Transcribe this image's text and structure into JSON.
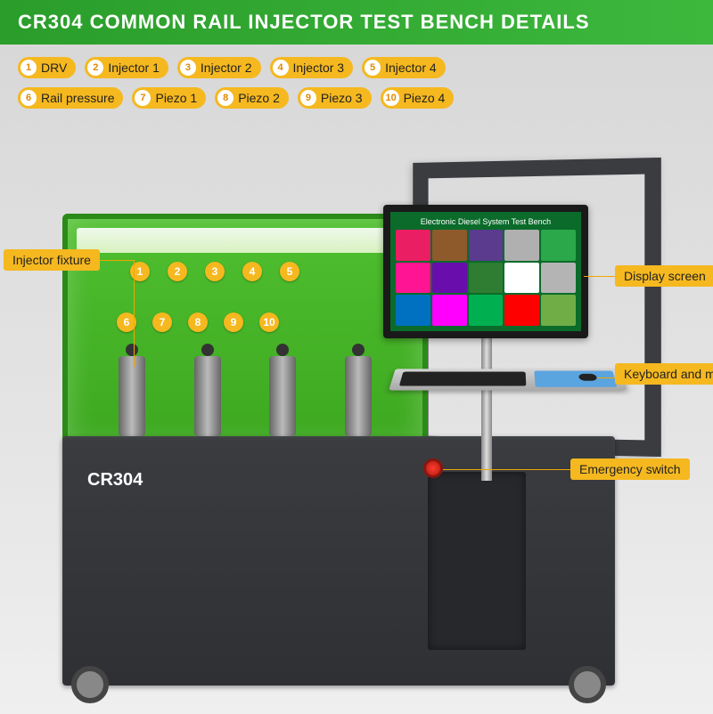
{
  "header": {
    "title": "CR304 COMMON  RAIL INJECTOR TEST BENCH   DETAILS"
  },
  "legend": {
    "row1": [
      {
        "num": "1",
        "label": "DRV"
      },
      {
        "num": "2",
        "label": "Injector 1"
      },
      {
        "num": "3",
        "label": "Injector 2"
      },
      {
        "num": "4",
        "label": "Injector 3"
      },
      {
        "num": "5",
        "label": "Injector 4"
      }
    ],
    "row2": [
      {
        "num": "6",
        "label": "Rail pressure"
      },
      {
        "num": "7",
        "label": "Piezo 1"
      },
      {
        "num": "8",
        "label": "Piezo 2"
      },
      {
        "num": "9",
        "label": "Piezo 3"
      },
      {
        "num": "10",
        "label": "Piezo 4"
      }
    ]
  },
  "machine": {
    "model": "CR304",
    "screen_title": "Electronic Diesel System Test Bench",
    "tile_colors": [
      "#e91e63",
      "#8e5a2b",
      "#5a3b8e",
      "#b0b0b0",
      "#2aa84a",
      "#ff1493",
      "#6a0dad",
      "#2e7d32",
      "#ffffff",
      "#b4b4b4",
      "#0070c0",
      "#ff00ff",
      "#00b050",
      "#ff0000",
      "#70ad47"
    ],
    "port_nums_top": [
      "1",
      "2",
      "3",
      "4",
      "5"
    ],
    "port_nums_bottom": [
      "6",
      "7",
      "8",
      "9",
      "10"
    ]
  },
  "callouts": {
    "injector_fixture": "Injector fixture",
    "display_screen": "Display screen",
    "keyboard_mouse": "Keyboard and mouse",
    "emergency_switch": "Emergency switch"
  },
  "colors": {
    "accent": "#f5b81f",
    "green": "#3db83d",
    "cabinet": "#2e3033"
  }
}
